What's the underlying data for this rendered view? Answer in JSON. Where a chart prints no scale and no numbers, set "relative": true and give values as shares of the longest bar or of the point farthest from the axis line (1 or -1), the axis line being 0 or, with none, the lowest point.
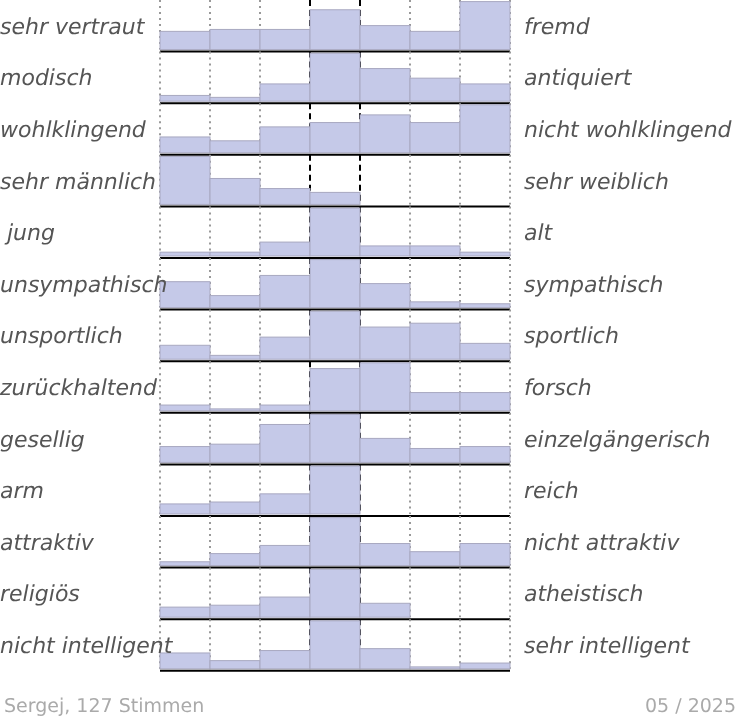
{
  "chart_data": [
    {
      "type": "bar",
      "relative": true,
      "ylabel": "sehr vertraut",
      "y2label": "fremd",
      "categories": [
        null,
        null,
        null,
        null,
        null,
        null,
        null
      ],
      "values": [
        0.38,
        0.42,
        0.42,
        0.83,
        0.5,
        0.38,
        1
      ],
      "color": "#c5c9e8",
      "grid": "x",
      "tick_labels": false
    },
    {
      "type": "bar",
      "relative": true,
      "ylabel": "modisch",
      "y2label": "antiquiert",
      "categories": [
        null,
        null,
        null,
        null,
        null,
        null,
        null
      ],
      "values": [
        0.12,
        0.08,
        0.36,
        1,
        0.68,
        0.48,
        0.36
      ],
      "color": "#c5c9e8",
      "grid": "x",
      "tick_labels": false
    },
    {
      "type": "bar",
      "relative": true,
      "ylabel": "wohlklingend",
      "y2label": "nicht wohlklingend",
      "categories": [
        null,
        null,
        null,
        null,
        null,
        null,
        null
      ],
      "values": [
        0.33,
        0.25,
        0.54,
        0.63,
        0.79,
        0.63,
        1
      ],
      "color": "#c5c9e8",
      "grid": "x",
      "tick_labels": false
    },
    {
      "type": "bar",
      "relative": true,
      "ylabel": "sehr männlich",
      "y2label": "sehr weiblich",
      "categories": [
        null,
        null,
        null,
        null,
        null,
        null,
        null
      ],
      "values": [
        1,
        0.54,
        0.33,
        0.25,
        0,
        0,
        0
      ],
      "color": "#c5c9e8",
      "grid": "x",
      "tick_labels": false
    },
    {
      "type": "bar",
      "relative": true,
      "ylabel": " jung",
      "y2label": "alt",
      "categories": [
        null,
        null,
        null,
        null,
        null,
        null,
        null
      ],
      "values": [
        0.08,
        0.08,
        0.29,
        1,
        0.21,
        0.21,
        0.08
      ],
      "color": "#c5c9e8",
      "grid": "x",
      "tick_labels": false
    },
    {
      "type": "bar",
      "relative": true,
      "ylabel": "unsympathisch",
      "y2label": "sympathisch",
      "categories": [
        null,
        null,
        null,
        null,
        null,
        null,
        null
      ],
      "values": [
        0.54,
        0.25,
        0.67,
        1,
        0.5,
        0.12,
        0.08
      ],
      "color": "#c5c9e8",
      "grid": "x",
      "tick_labels": false
    },
    {
      "type": "bar",
      "relative": true,
      "ylabel": "unsportlich",
      "y2label": "sportlich",
      "categories": [
        null,
        null,
        null,
        null,
        null,
        null,
        null
      ],
      "values": [
        0.29,
        0.08,
        0.46,
        1,
        0.67,
        0.75,
        0.33
      ],
      "color": "#c5c9e8",
      "grid": "x",
      "tick_labels": false
    },
    {
      "type": "bar",
      "relative": true,
      "ylabel": "zurückhaltend",
      "y2label": "forsch",
      "categories": [
        null,
        null,
        null,
        null,
        null,
        null,
        null
      ],
      "values": [
        0.12,
        0.04,
        0.12,
        0.88,
        1,
        0.38,
        0.38
      ],
      "color": "#c5c9e8",
      "grid": "x",
      "tick_labels": false
    },
    {
      "type": "bar",
      "relative": true,
      "ylabel": "gesellig",
      "y2label": "einzelgängerisch",
      "categories": [
        null,
        null,
        null,
        null,
        null,
        null,
        null
      ],
      "values": [
        0.33,
        0.38,
        0.79,
        1,
        0.5,
        0.29,
        0.33
      ],
      "color": "#c5c9e8",
      "grid": "x",
      "tick_labels": false
    },
    {
      "type": "bar",
      "relative": true,
      "ylabel": "arm",
      "y2label": "reich",
      "categories": [
        null,
        null,
        null,
        null,
        null,
        null,
        null
      ],
      "values": [
        0.21,
        0.25,
        0.42,
        1,
        0,
        0,
        0
      ],
      "color": "#c5c9e8",
      "grid": "x",
      "tick_labels": false
    },
    {
      "type": "bar",
      "relative": true,
      "ylabel": "attraktiv",
      "y2label": "nicht attraktiv",
      "categories": [
        null,
        null,
        null,
        null,
        null,
        null,
        null
      ],
      "values": [
        0.08,
        0.25,
        0.42,
        1,
        0.46,
        0.29,
        0.46
      ],
      "color": "#c5c9e8",
      "grid": "x",
      "tick_labels": false
    },
    {
      "type": "bar",
      "relative": true,
      "ylabel": "religiös",
      "y2label": "atheistisch",
      "categories": [
        null,
        null,
        null,
        null,
        null,
        null,
        null
      ],
      "values": [
        0.21,
        0.25,
        0.42,
        1,
        0.29,
        0,
        0
      ],
      "color": "#c5c9e8",
      "grid": "x",
      "tick_labels": false
    },
    {
      "type": "bar",
      "relative": true,
      "ylabel": "nicht intelligent",
      "y2label": "sehr intelligent",
      "categories": [
        null,
        null,
        null,
        null,
        null,
        null,
        null
      ],
      "values": [
        0.33,
        0.17,
        0.38,
        1,
        0.42,
        0.04,
        0.12
      ],
      "color": "#c5c9e8",
      "grid": "x",
      "tick_labels": false,
      "annotations": [
        "Sergej, 127 Stimmen",
        "05 / 2025"
      ]
    }
  ]
}
